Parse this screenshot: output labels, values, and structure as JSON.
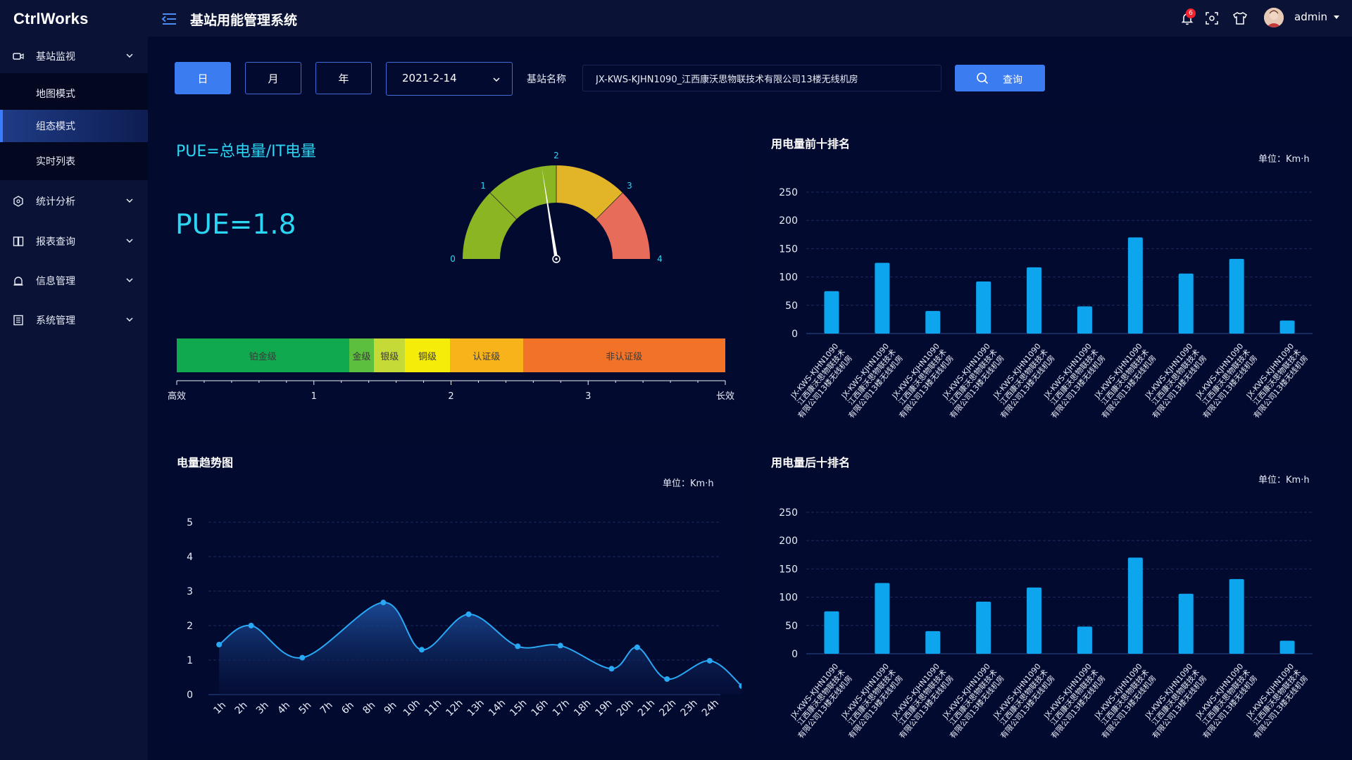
{
  "app": {
    "logo": "CtrlWorks",
    "title": "基站用能管理系统"
  },
  "sidebar": {
    "groups": [
      {
        "label": "基站监视",
        "icon": "camera-icon"
      },
      {
        "label": "统计分析",
        "icon": "hexagon-icon"
      },
      {
        "label": "报表查询",
        "icon": "book-icon"
      },
      {
        "label": "信息管理",
        "icon": "user-icon"
      },
      {
        "label": "系统管理",
        "icon": "list-icon"
      }
    ],
    "sub_items": [
      {
        "label": "地图模式"
      },
      {
        "label": "组态模式",
        "active": true
      },
      {
        "label": "实时列表"
      }
    ]
  },
  "topbar": {
    "notification_count": "6",
    "user": "admin"
  },
  "filter": {
    "periods": [
      "日",
      "月",
      "年"
    ],
    "active_period": "日",
    "date": "2021-2-14",
    "station_label": "基站名称",
    "station_value": "JX-KWS-KJHN1090_江西康沃思物联技术有限公司13楼无线机房",
    "query_label": "查询"
  },
  "pue": {
    "title": "PUE=总电量/IT电量",
    "value_text": "PUE=1.8",
    "gauge": {
      "min": 0,
      "max": 4,
      "value": 1.8,
      "ticks": [
        "0",
        "1",
        "2",
        "3",
        "4"
      ],
      "colors": [
        "#8cb523",
        "#8cb523",
        "#e2b428",
        "#e86c5a"
      ]
    },
    "grades": [
      {
        "label": "铂金级",
        "color": "#10a94f",
        "share": 0.314
      },
      {
        "label": "金级",
        "color": "#5cbf3e",
        "share": 0.046
      },
      {
        "label": "银级",
        "color": "#c5da37",
        "share": 0.056
      },
      {
        "label": "铜级",
        "color": "#f5ec0a",
        "share": 0.082
      },
      {
        "label": "认证级",
        "color": "#f9b31a",
        "share": 0.133
      },
      {
        "label": "非认证级",
        "color": "#f27328",
        "share": 0.369
      }
    ],
    "scale_labels": [
      "高效",
      "1",
      "2",
      "3",
      "长效"
    ]
  },
  "top10": {
    "title": "用电量前十排名",
    "unit": "单位：Km·h",
    "chart_data": {
      "type": "bar",
      "categories_line1": [
        "JX-KWS-KJHN1090",
        "JX-KWS-KJHN1090",
        "JX-KWS-KJHN1090",
        "JX-KWS-KJHN1090",
        "JX-KWS-KJHN1090",
        "JX-KWS-KJHN1090",
        "JX-KWS-KJHN1090",
        "JX-KWS-KJHN1090",
        "JX-KWS-KJHN1090",
        "JX-KWS-KJHN1090"
      ],
      "categories_line2": [
        "江西康沃思物联技术",
        "江西康沃思物联技术",
        "江西康沃思物联技术",
        "江西康沃思物联技术",
        "江西康沃思物联技术",
        "江西康沃思物联技术",
        "江西康沃思物联技术",
        "江西康沃思物联技术",
        "江西康沃思物联技术",
        "江西康沃思物联技术"
      ],
      "categories_line3": [
        "有限公司13楼无线机房",
        "有限公司13楼无线机房",
        "有限公司13楼无线机房",
        "有限公司13楼无线机房",
        "有限公司13楼无线机房",
        "有限公司13楼无线机房",
        "有限公司13楼无线机房",
        "有限公司13楼无线机房",
        "有限公司13楼无线机房",
        "有限公司13楼无线机房"
      ],
      "values": [
        75,
        125,
        40,
        92,
        117,
        48,
        170,
        106,
        132,
        23
      ],
      "ylim": [
        0,
        250
      ],
      "yticks": [
        "0",
        "50",
        "100",
        "150",
        "200",
        "250"
      ],
      "bar_color": "#0ea5ef",
      "grid": true
    }
  },
  "bottom10": {
    "title": "用电量后十排名",
    "unit": "单位：Km·h",
    "chart_data": {
      "type": "bar",
      "categories_line1": [
        "JX-KWS-KJHN1090",
        "JX-KWS-KJHN1090",
        "JX-KWS-KJHN1090",
        "JX-KWS-KJHN1090",
        "JX-KWS-KJHN1090",
        "JX-KWS-KJHN1090",
        "JX-KWS-KJHN1090",
        "JX-KWS-KJHN1090",
        "JX-KWS-KJHN1090",
        "JX-KWS-KJHN1090"
      ],
      "categories_line2": [
        "江西康沃思物联技术",
        "江西康沃思物联技术",
        "江西康沃思物联技术",
        "江西康沃思物联技术",
        "江西康沃思物联技术",
        "江西康沃思物联技术",
        "江西康沃思物联技术",
        "江西康沃思物联技术",
        "江西康沃思物联技术",
        "江西康沃思物联技术"
      ],
      "categories_line3": [
        "有限公司13楼无线机房",
        "有限公司13楼无线机房",
        "有限公司13楼无线机房",
        "有限公司13楼无线机房",
        "有限公司13楼无线机房",
        "有限公司13楼无线机房",
        "有限公司13楼无线机房",
        "有限公司13楼无线机房",
        "有限公司13楼无线机房",
        "有限公司13楼无线机房"
      ],
      "values": [
        75,
        125,
        40,
        92,
        117,
        48,
        170,
        106,
        132,
        23
      ],
      "ylim": [
        0,
        250
      ],
      "yticks": [
        "0",
        "50",
        "100",
        "150",
        "200",
        "250"
      ],
      "bar_color": "#0ea5ef",
      "grid": true
    }
  },
  "trend": {
    "title": "电量趋势图",
    "unit": "单位：Km·h",
    "chart_data": {
      "type": "area",
      "categories": [
        "1h",
        "2h",
        "3h",
        "4h",
        "5h",
        "7h",
        "6h",
        "8h",
        "9h",
        "10h",
        "11h",
        "12h",
        "13h",
        "14h",
        "15h",
        "16h",
        "17h",
        "18h",
        "19h",
        "20h",
        "21h",
        "22h",
        "23h",
        "24h"
      ],
      "points": [
        {
          "i": 0,
          "v": 1.45
        },
        {
          "i": 1.5,
          "v": 2.0
        },
        {
          "i": 3.9,
          "v": 1.07
        },
        {
          "i": 7.7,
          "v": 2.67
        },
        {
          "i": 9.5,
          "v": 1.3
        },
        {
          "i": 11.7,
          "v": 2.33
        },
        {
          "i": 14.0,
          "v": 1.4
        },
        {
          "i": 16.0,
          "v": 1.42
        },
        {
          "i": 18.4,
          "v": 0.75
        },
        {
          "i": 19.6,
          "v": 1.37
        },
        {
          "i": 21.0,
          "v": 0.45
        },
        {
          "i": 23.0,
          "v": 0.98
        },
        {
          "i": 24.5,
          "v": 0.25
        }
      ],
      "ylim": [
        0,
        5
      ],
      "yticks": [
        "0",
        "1",
        "2",
        "3",
        "4",
        "5"
      ],
      "line_color": "#29a8f5",
      "grid": true
    }
  }
}
